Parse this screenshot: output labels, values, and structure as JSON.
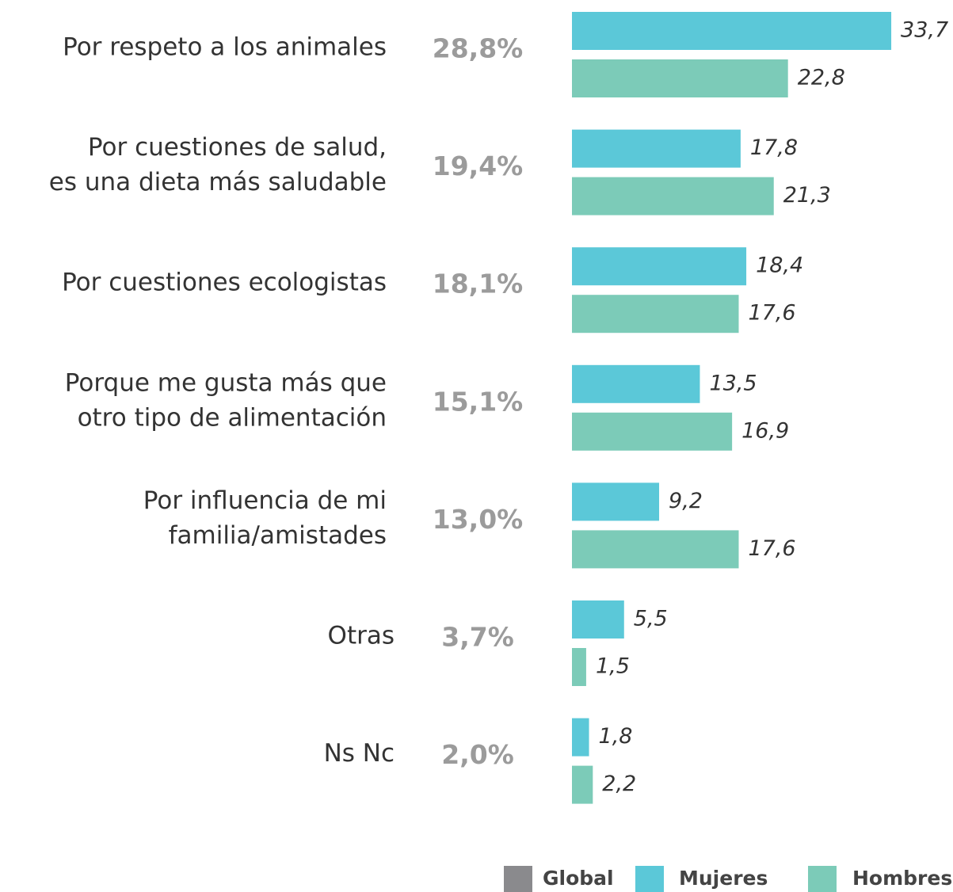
{
  "chart_data": {
    "type": "bar",
    "orientation": "horizontal",
    "categories": [
      [
        "Por respeto a los animales"
      ],
      [
        "Por cuestiones de salud,",
        "es una dieta más saludable"
      ],
      [
        "Por cuestiones ecologistas"
      ],
      [
        "Porque me gusta más que",
        "otro tipo de alimentación"
      ],
      [
        "Por influencia de mi",
        "familia/amistades"
      ],
      [
        "Otras"
      ],
      [
        "Ns Nc"
      ]
    ],
    "series": [
      {
        "name": "Global",
        "color": "#8a8a8d",
        "values": [
          28.8,
          19.4,
          18.1,
          15.1,
          13.0,
          3.7,
          2.0
        ],
        "value_labels": [
          "28,8%",
          "19,4%",
          "18,1%",
          "15,1%",
          "13,0%",
          "3,7%",
          "2,0%"
        ]
      },
      {
        "name": "Mujeres",
        "color": "#5bc8d8",
        "values": [
          33.7,
          17.8,
          18.4,
          13.5,
          9.2,
          5.5,
          1.8
        ],
        "value_labels": [
          "33,7",
          "17,8",
          "18,4",
          "13,5",
          "9,2",
          "5,5",
          "1,8"
        ]
      },
      {
        "name": "Hombres",
        "color": "#7ccbb8",
        "values": [
          22.8,
          21.3,
          17.6,
          16.9,
          17.6,
          1.5,
          2.2
        ],
        "value_labels": [
          "22,8",
          "21,3",
          "17,6",
          "16,9",
          "17,6",
          "1,5",
          "2,2"
        ]
      }
    ]
  }
}
